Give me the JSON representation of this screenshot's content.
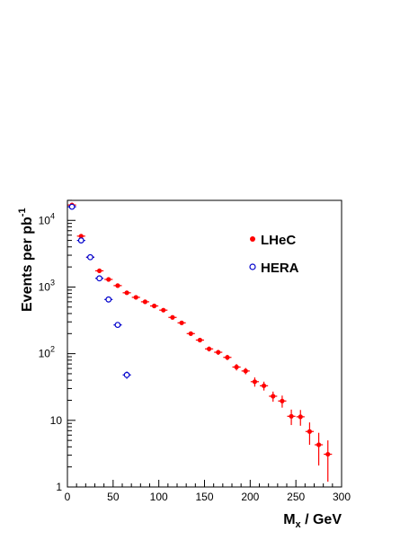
{
  "chart_data": {
    "type": "scatter",
    "xlabel": "M",
    "xlabel_sub": "x",
    "xlabel_unit": " / GeV",
    "ylabel": "Events per pb",
    "ylabel_sup": "-1",
    "xlim": [
      0,
      300
    ],
    "ylim": [
      1,
      20000
    ],
    "y_scale": "log",
    "grid": false,
    "legend_position": "upper-right",
    "x_ticks": [
      {
        "value": 0,
        "label": "0"
      },
      {
        "value": 50,
        "label": "50"
      },
      {
        "value": 100,
        "label": "100"
      },
      {
        "value": 150,
        "label": "150"
      },
      {
        "value": 200,
        "label": "200"
      },
      {
        "value": 250,
        "label": "250"
      },
      {
        "value": 300,
        "label": "300"
      }
    ],
    "y_ticks": [
      {
        "value": 1,
        "base": "1",
        "exp": ""
      },
      {
        "value": 10,
        "base": "10",
        "exp": ""
      },
      {
        "value": 100,
        "base": "10",
        "exp": "2"
      },
      {
        "value": 1000,
        "base": "10",
        "exp": "3"
      },
      {
        "value": 10000,
        "base": "10",
        "exp": "4"
      }
    ],
    "series": [
      {
        "name": "LHeC",
        "marker": "filled-circle",
        "color": "#ff0000",
        "x": [
          5,
          15,
          25,
          35,
          45,
          55,
          65,
          75,
          85,
          95,
          105,
          115,
          125,
          135,
          145,
          155,
          165,
          175,
          185,
          195,
          205,
          215,
          225,
          235,
          245,
          255,
          265,
          275,
          285
        ],
        "y": [
          17000,
          5800,
          2800,
          1750,
          1300,
          1050,
          820,
          700,
          600,
          520,
          450,
          350,
          290,
          200,
          160,
          118,
          105,
          88,
          63,
          55,
          38,
          33,
          23,
          19.5,
          11.5,
          11.3,
          6.8,
          4.3,
          3.1
        ],
        "y_err_low": [
          500,
          200,
          100,
          80,
          60,
          50,
          40,
          35,
          30,
          30,
          25,
          20,
          18,
          15,
          12,
          10,
          9,
          8,
          7,
          6,
          6,
          5,
          4,
          4,
          3,
          3,
          2.5,
          2.2,
          1.9
        ],
        "y_err_high": [
          500,
          200,
          100,
          80,
          60,
          50,
          40,
          35,
          30,
          30,
          25,
          20,
          18,
          15,
          12,
          10,
          9,
          8,
          7,
          6,
          6,
          5,
          4,
          4,
          3,
          3,
          2.5,
          2.2,
          1.9
        ]
      },
      {
        "name": "HERA",
        "marker": "open-circle",
        "color": "#0000cc",
        "x": [
          5,
          15,
          25,
          35,
          45,
          55,
          65
        ],
        "y": [
          16000,
          5000,
          2800,
          1350,
          650,
          270,
          48
        ],
        "y_err_low": [
          700,
          250,
          150,
          80,
          40,
          20,
          6
        ],
        "y_err_high": [
          700,
          250,
          150,
          80,
          40,
          20,
          6
        ]
      }
    ]
  }
}
